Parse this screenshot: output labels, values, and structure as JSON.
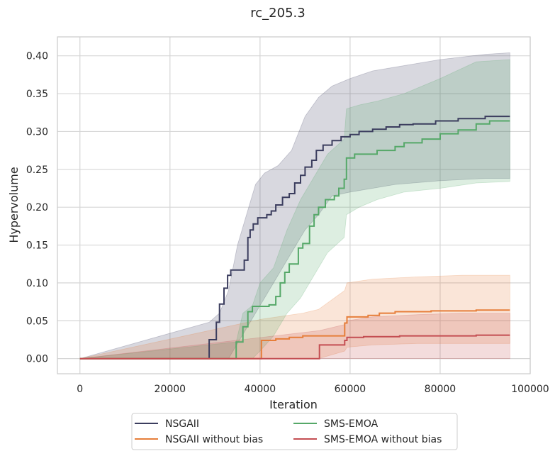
{
  "chart_data": {
    "type": "line",
    "title": "rc_205.3",
    "xlabel": "Iteration",
    "ylabel": "Hypervolume",
    "xlim": [
      -5000,
      100000
    ],
    "ylim": [
      -0.02,
      0.425
    ],
    "grid": true,
    "legend_position": "bottom-center",
    "x_ticks": [
      0,
      20000,
      40000,
      60000,
      80000,
      100000
    ],
    "x_tick_labels": [
      "0",
      "20000",
      "40000",
      "60000",
      "80000",
      "100000"
    ],
    "y_ticks": [
      0.0,
      0.05,
      0.1,
      0.15,
      0.2,
      0.25,
      0.3,
      0.35,
      0.4
    ],
    "y_tick_labels": [
      "0.00",
      "0.05",
      "0.10",
      "0.15",
      "0.20",
      "0.25",
      "0.30",
      "0.35",
      "0.40"
    ],
    "series": [
      {
        "name": "NSGAII",
        "color": "#3b3d5e",
        "band_color": "#3b3d5e",
        "points": [
          [
            0,
            0
          ],
          [
            28700,
            0
          ],
          [
            28700,
            0.025
          ],
          [
            30300,
            0.025
          ],
          [
            30300,
            0.048
          ],
          [
            31000,
            0.048
          ],
          [
            31000,
            0.072
          ],
          [
            32000,
            0.072
          ],
          [
            32000,
            0.093
          ],
          [
            32800,
            0.093
          ],
          [
            32800,
            0.11
          ],
          [
            33500,
            0.11
          ],
          [
            33500,
            0.117
          ],
          [
            36500,
            0.117
          ],
          [
            36500,
            0.13
          ],
          [
            37300,
            0.13
          ],
          [
            37300,
            0.16
          ],
          [
            37800,
            0.16
          ],
          [
            37800,
            0.17
          ],
          [
            38500,
            0.17
          ],
          [
            38500,
            0.178
          ],
          [
            39500,
            0.178
          ],
          [
            39500,
            0.186
          ],
          [
            41500,
            0.186
          ],
          [
            41500,
            0.19
          ],
          [
            42500,
            0.19
          ],
          [
            42500,
            0.195
          ],
          [
            43500,
            0.195
          ],
          [
            43500,
            0.203
          ],
          [
            45000,
            0.203
          ],
          [
            45000,
            0.213
          ],
          [
            46500,
            0.213
          ],
          [
            46500,
            0.218
          ],
          [
            47700,
            0.218
          ],
          [
            47700,
            0.232
          ],
          [
            49000,
            0.232
          ],
          [
            49000,
            0.242
          ],
          [
            50000,
            0.242
          ],
          [
            50000,
            0.253
          ],
          [
            51500,
            0.253
          ],
          [
            51500,
            0.262
          ],
          [
            52500,
            0.262
          ],
          [
            52500,
            0.275
          ],
          [
            54000,
            0.275
          ],
          [
            54000,
            0.282
          ],
          [
            56000,
            0.282
          ],
          [
            56000,
            0.288
          ],
          [
            58000,
            0.288
          ],
          [
            58000,
            0.293
          ],
          [
            60000,
            0.293
          ],
          [
            60000,
            0.296
          ],
          [
            62000,
            0.296
          ],
          [
            62000,
            0.3
          ],
          [
            65000,
            0.3
          ],
          [
            65000,
            0.303
          ],
          [
            68000,
            0.303
          ],
          [
            68000,
            0.306
          ],
          [
            71000,
            0.306
          ],
          [
            71000,
            0.309
          ],
          [
            74000,
            0.309
          ],
          [
            74000,
            0.31
          ],
          [
            79000,
            0.31
          ],
          [
            79000,
            0.314
          ],
          [
            84000,
            0.314
          ],
          [
            84000,
            0.317
          ],
          [
            90000,
            0.317
          ],
          [
            90000,
            0.32
          ],
          [
            95500,
            0.32
          ]
        ],
        "band": [
          [
            0,
            0,
            0
          ],
          [
            28700,
            0,
            0.048
          ],
          [
            31000,
            0,
            0.06
          ],
          [
            33000,
            0,
            0.09
          ],
          [
            35000,
            0.02,
            0.15
          ],
          [
            37000,
            0.04,
            0.19
          ],
          [
            39000,
            0.06,
            0.23
          ],
          [
            41000,
            0.08,
            0.245
          ],
          [
            44000,
            0.11,
            0.255
          ],
          [
            47000,
            0.14,
            0.275
          ],
          [
            50000,
            0.17,
            0.32
          ],
          [
            53000,
            0.19,
            0.345
          ],
          [
            56000,
            0.215,
            0.36
          ],
          [
            60000,
            0.22,
            0.37
          ],
          [
            65000,
            0.225,
            0.38
          ],
          [
            70000,
            0.23,
            0.385
          ],
          [
            80000,
            0.235,
            0.395
          ],
          [
            90000,
            0.238,
            0.402
          ],
          [
            95500,
            0.238,
            0.404
          ]
        ]
      },
      {
        "name": "NSGAII without bias",
        "color": "#e67e3a",
        "band_color": "#e67e3a",
        "points": [
          [
            0,
            0
          ],
          [
            40300,
            0
          ],
          [
            40300,
            0.024
          ],
          [
            43500,
            0.024
          ],
          [
            43500,
            0.026
          ],
          [
            46500,
            0.026
          ],
          [
            46500,
            0.028
          ],
          [
            49500,
            0.028
          ],
          [
            49500,
            0.03
          ],
          [
            58800,
            0.03
          ],
          [
            58800,
            0.047
          ],
          [
            59300,
            0.047
          ],
          [
            59300,
            0.055
          ],
          [
            64000,
            0.055
          ],
          [
            64000,
            0.057
          ],
          [
            66500,
            0.057
          ],
          [
            66500,
            0.06
          ],
          [
            70000,
            0.06
          ],
          [
            70000,
            0.062
          ],
          [
            78000,
            0.062
          ],
          [
            78000,
            0.063
          ],
          [
            88000,
            0.063
          ],
          [
            88000,
            0.064
          ],
          [
            95500,
            0.064
          ]
        ],
        "band": [
          [
            0,
            0,
            0
          ],
          [
            40300,
            0,
            0.052
          ],
          [
            49500,
            0,
            0.06
          ],
          [
            53000,
            0,
            0.065
          ],
          [
            58800,
            0.01,
            0.09
          ],
          [
            59300,
            0.015,
            0.1
          ],
          [
            65000,
            0.018,
            0.105
          ],
          [
            75000,
            0.02,
            0.108
          ],
          [
            85000,
            0.02,
            0.11
          ],
          [
            95500,
            0.02,
            0.11
          ]
        ]
      },
      {
        "name": "SMS-EMOA",
        "color": "#55a868",
        "band_color": "#55a868",
        "points": [
          [
            0,
            0
          ],
          [
            34700,
            0
          ],
          [
            34700,
            0.022
          ],
          [
            36200,
            0.022
          ],
          [
            36200,
            0.042
          ],
          [
            37300,
            0.042
          ],
          [
            37300,
            0.062
          ],
          [
            38300,
            0.062
          ],
          [
            38300,
            0.069
          ],
          [
            42000,
            0.069
          ],
          [
            42000,
            0.071
          ],
          [
            43500,
            0.071
          ],
          [
            43500,
            0.082
          ],
          [
            44500,
            0.082
          ],
          [
            44500,
            0.1
          ],
          [
            45500,
            0.1
          ],
          [
            45500,
            0.114
          ],
          [
            46500,
            0.114
          ],
          [
            46500,
            0.125
          ],
          [
            48500,
            0.125
          ],
          [
            48500,
            0.146
          ],
          [
            49500,
            0.146
          ],
          [
            49500,
            0.152
          ],
          [
            51000,
            0.152
          ],
          [
            51000,
            0.175
          ],
          [
            52000,
            0.175
          ],
          [
            52000,
            0.19
          ],
          [
            53000,
            0.19
          ],
          [
            53000,
            0.2
          ],
          [
            54500,
            0.2
          ],
          [
            54500,
            0.21
          ],
          [
            56500,
            0.21
          ],
          [
            56500,
            0.215
          ],
          [
            57500,
            0.215
          ],
          [
            57500,
            0.225
          ],
          [
            58700,
            0.225
          ],
          [
            58700,
            0.237
          ],
          [
            59200,
            0.237
          ],
          [
            59200,
            0.265
          ],
          [
            61000,
            0.265
          ],
          [
            61000,
            0.27
          ],
          [
            66000,
            0.27
          ],
          [
            66000,
            0.275
          ],
          [
            70000,
            0.275
          ],
          [
            70000,
            0.28
          ],
          [
            72000,
            0.28
          ],
          [
            72000,
            0.285
          ],
          [
            76000,
            0.285
          ],
          [
            76000,
            0.29
          ],
          [
            80000,
            0.29
          ],
          [
            80000,
            0.297
          ],
          [
            84000,
            0.297
          ],
          [
            84000,
            0.302
          ],
          [
            88000,
            0.302
          ],
          [
            88000,
            0.31
          ],
          [
            91000,
            0.31
          ],
          [
            91000,
            0.314
          ],
          [
            95500,
            0.314
          ]
        ],
        "band": [
          [
            0,
            0,
            0
          ],
          [
            34700,
            0,
            0.022
          ],
          [
            36200,
            0,
            0.06
          ],
          [
            38300,
            0,
            0.07
          ],
          [
            40000,
            0.01,
            0.1
          ],
          [
            43000,
            0.03,
            0.12
          ],
          [
            46000,
            0.06,
            0.17
          ],
          [
            49000,
            0.08,
            0.21
          ],
          [
            52000,
            0.11,
            0.24
          ],
          [
            55000,
            0.14,
            0.27
          ],
          [
            58700,
            0.16,
            0.29
          ],
          [
            59200,
            0.19,
            0.33
          ],
          [
            62000,
            0.2,
            0.335
          ],
          [
            66000,
            0.21,
            0.34
          ],
          [
            72000,
            0.22,
            0.35
          ],
          [
            80000,
            0.225,
            0.37
          ],
          [
            88000,
            0.232,
            0.392
          ],
          [
            95500,
            0.234,
            0.395
          ]
        ]
      },
      {
        "name": "SMS-EMOA without bias",
        "color": "#c44e52",
        "band_color": "#c44e52",
        "points": [
          [
            0,
            0
          ],
          [
            53200,
            0
          ],
          [
            53200,
            0.018
          ],
          [
            58800,
            0.018
          ],
          [
            58800,
            0.024
          ],
          [
            59300,
            0.024
          ],
          [
            59300,
            0.028
          ],
          [
            63000,
            0.028
          ],
          [
            63000,
            0.029
          ],
          [
            71000,
            0.029
          ],
          [
            71000,
            0.03
          ],
          [
            88000,
            0.03
          ],
          [
            88000,
            0.031
          ],
          [
            95500,
            0.031
          ]
        ],
        "band": [
          [
            0,
            0,
            0
          ],
          [
            53200,
            0,
            0.037
          ],
          [
            58800,
            0,
            0.045
          ],
          [
            59300,
            0,
            0.05
          ],
          [
            65000,
            0,
            0.055
          ],
          [
            75000,
            0,
            0.058
          ],
          [
            85000,
            0,
            0.06
          ],
          [
            95500,
            0,
            0.06
          ]
        ]
      }
    ]
  }
}
